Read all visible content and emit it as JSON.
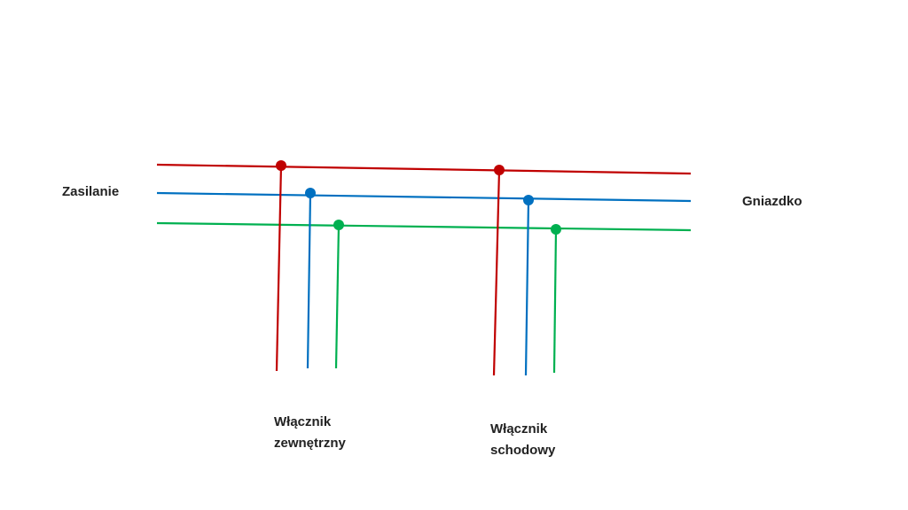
{
  "labels": {
    "source": "Zasilanie",
    "outlet": "Gniazdko",
    "switch1": [
      "Włącznik",
      "zewnętrzny"
    ],
    "switch2": [
      "Włącznik",
      "schodowy"
    ]
  }
}
